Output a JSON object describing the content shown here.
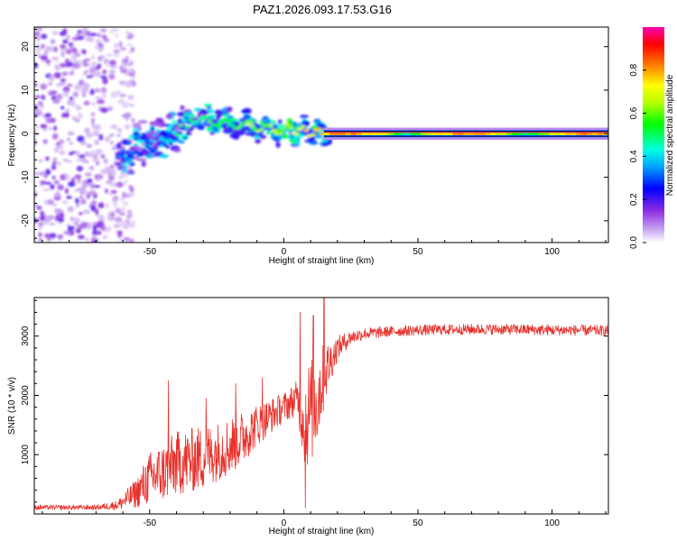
{
  "title": "PAZ1.2026.093.17.53.G16",
  "chart_data": [
    {
      "type": "heatmap",
      "name": "spectrogram",
      "xlabel": "Height of straight line (km)",
      "ylabel": "Frequency (Hz)",
      "xlim": [
        -93,
        121
      ],
      "ylim": [
        -25,
        24.5
      ],
      "xticks": [
        -50,
        0,
        50,
        100
      ],
      "yticks": [
        -20,
        -10,
        0,
        10,
        20
      ],
      "colorbar": {
        "label": "Normalized spectral amplitude",
        "range": [
          0,
          1
        ],
        "ticks": [
          0.0,
          0.2,
          0.4,
          0.6,
          0.8
        ]
      },
      "features": {
        "noise_region_x": [
          -93,
          -60
        ],
        "transition_region_x": [
          -60,
          15
        ],
        "stable_line": {
          "x": [
            15,
            121
          ],
          "freq_hz": 0,
          "amplitude": 0.9
        }
      }
    },
    {
      "type": "line",
      "name": "snr",
      "xlabel": "Height of straight line (km)",
      "ylabel": "SNR (10 * v/v)",
      "xlim": [
        -93,
        121
      ],
      "ylim": [
        0,
        3650
      ],
      "xticks": [
        -50,
        0,
        50,
        100
      ],
      "yticks": [
        1000,
        2000,
        3000
      ],
      "color": "#e8302a",
      "envelope": {
        "x": [
          -93,
          -70,
          -62,
          -55,
          -50,
          -45,
          -40,
          -35,
          -30,
          -25,
          -20,
          -15,
          -10,
          -5,
          0,
          5,
          8,
          12,
          16,
          20,
          25,
          30,
          40,
          50,
          60,
          70,
          80,
          90,
          100,
          110,
          121
        ],
        "mean": [
          110,
          110,
          150,
          350,
          600,
          700,
          850,
          900,
          950,
          1050,
          1150,
          1300,
          1500,
          1650,
          1800,
          1950,
          1600,
          1900,
          2450,
          2800,
          2980,
          3040,
          3080,
          3100,
          3110,
          3115,
          3115,
          3110,
          3100,
          3100,
          3090
        ],
        "spread": [
          40,
          40,
          80,
          250,
          450,
          500,
          550,
          550,
          550,
          500,
          500,
          450,
          350,
          300,
          250,
          300,
          900,
          900,
          450,
          200,
          120,
          100,
          90,
          90,
          90,
          90,
          90,
          90,
          90,
          90,
          90
        ]
      },
      "spikes": [
        {
          "x": -43,
          "y": 2250
        },
        {
          "x": -29,
          "y": 1950
        },
        {
          "x": -18,
          "y": 2200
        },
        {
          "x": -8,
          "y": 2300
        },
        {
          "x": 6,
          "y": 3400
        },
        {
          "x": 8,
          "y": 100
        },
        {
          "x": 11,
          "y": 3350
        },
        {
          "x": 15,
          "y": 3650
        }
      ]
    }
  ]
}
